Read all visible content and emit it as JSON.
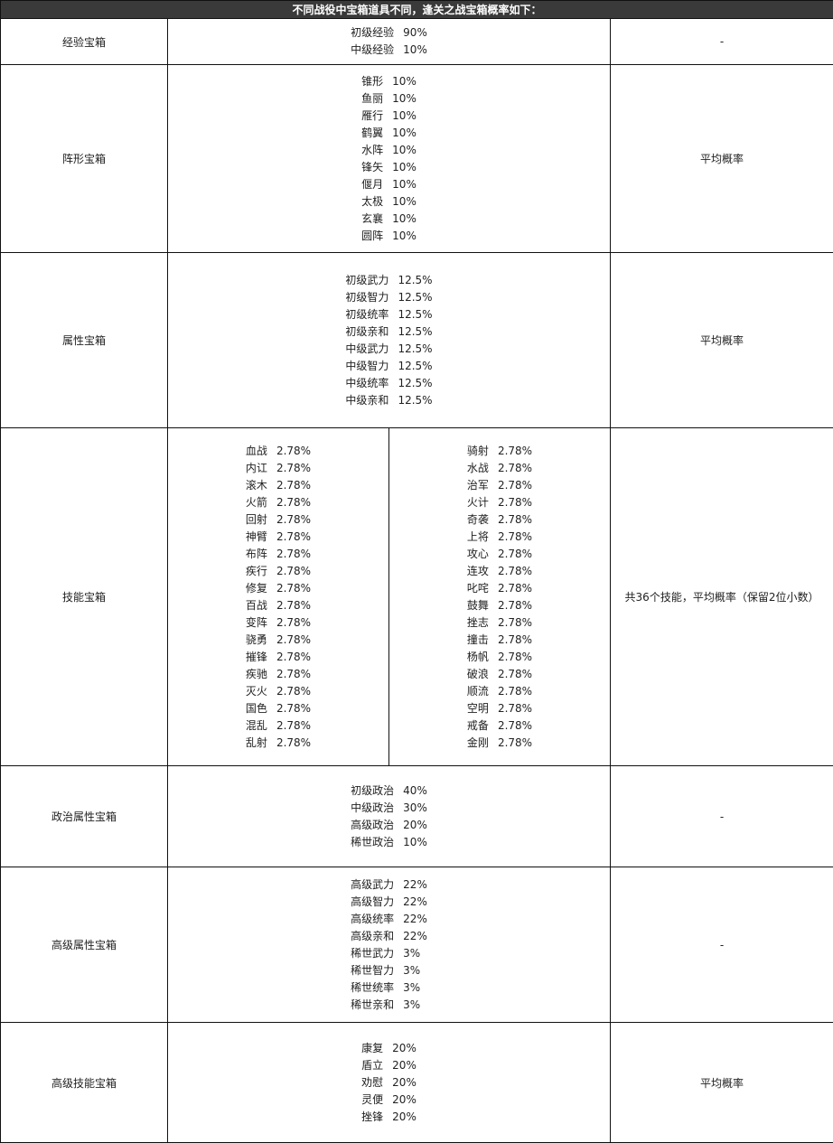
{
  "header": "不同战役中宝箱道具不同，逢关之战宝箱概率如下：",
  "rows": [
    {
      "name": "经验宝箱",
      "note": "-",
      "items": [
        [
          "初级经验",
          "90%"
        ],
        [
          "中级经验",
          "10%"
        ]
      ]
    },
    {
      "name": "阵形宝箱",
      "note": "平均概率",
      "items": [
        [
          "锥形",
          "10%"
        ],
        [
          "鱼丽",
          "10%"
        ],
        [
          "雁行",
          "10%"
        ],
        [
          "鹤翼",
          "10%"
        ],
        [
          "水阵",
          "10%"
        ],
        [
          "锋矢",
          "10%"
        ],
        [
          "偃月",
          "10%"
        ],
        [
          "太极",
          "10%"
        ],
        [
          "玄襄",
          "10%"
        ],
        [
          "圆阵",
          "10%"
        ]
      ]
    },
    {
      "name": "属性宝箱",
      "note": "平均概率",
      "items": [
        [
          "初级武力",
          "12.5%"
        ],
        [
          "初级智力",
          "12.5%"
        ],
        [
          "初级统率",
          "12.5%"
        ],
        [
          "初级亲和",
          "12.5%"
        ],
        [
          "中级武力",
          "12.5%"
        ],
        [
          "中级智力",
          "12.5%"
        ],
        [
          "中级统率",
          "12.5%"
        ],
        [
          "中级亲和",
          "12.5%"
        ]
      ]
    },
    {
      "name": "技能宝箱",
      "note": "共36个技能，平均概率（保留2位小数）",
      "items_left": [
        [
          "血战",
          "2.78%"
        ],
        [
          "内讧",
          "2.78%"
        ],
        [
          "滚木",
          "2.78%"
        ],
        [
          "火箭",
          "2.78%"
        ],
        [
          "回射",
          "2.78%"
        ],
        [
          "神臂",
          "2.78%"
        ],
        [
          "布阵",
          "2.78%"
        ],
        [
          "疾行",
          "2.78%"
        ],
        [
          "修复",
          "2.78%"
        ],
        [
          "百战",
          "2.78%"
        ],
        [
          "变阵",
          "2.78%"
        ],
        [
          "骁勇",
          "2.78%"
        ],
        [
          "摧锋",
          "2.78%"
        ],
        [
          "疾驰",
          "2.78%"
        ],
        [
          "灭火",
          "2.78%"
        ],
        [
          "国色",
          "2.78%"
        ],
        [
          "混乱",
          "2.78%"
        ],
        [
          "乱射",
          "2.78%"
        ]
      ],
      "items_right": [
        [
          "骑射",
          "2.78%"
        ],
        [
          "水战",
          "2.78%"
        ],
        [
          "治军",
          "2.78%"
        ],
        [
          "火计",
          "2.78%"
        ],
        [
          "奇袭",
          "2.78%"
        ],
        [
          "上将",
          "2.78%"
        ],
        [
          "攻心",
          "2.78%"
        ],
        [
          "连攻",
          "2.78%"
        ],
        [
          "叱咤",
          "2.78%"
        ],
        [
          "鼓舞",
          "2.78%"
        ],
        [
          "挫志",
          "2.78%"
        ],
        [
          "撞击",
          "2.78%"
        ],
        [
          "杨帆",
          "2.78%"
        ],
        [
          "破浪",
          "2.78%"
        ],
        [
          "顺流",
          "2.78%"
        ],
        [
          "空明",
          "2.78%"
        ],
        [
          "戒备",
          "2.78%"
        ],
        [
          "金刚",
          "2.78%"
        ]
      ]
    },
    {
      "name": "政治属性宝箱",
      "note": "-",
      "items": [
        [
          "初级政治",
          "40%"
        ],
        [
          "中级政治",
          "30%"
        ],
        [
          "高级政治",
          "20%"
        ],
        [
          "稀世政治",
          "10%"
        ]
      ]
    },
    {
      "name": "高级属性宝箱",
      "note": "-",
      "items": [
        [
          "高级武力",
          "22%"
        ],
        [
          "高级智力",
          "22%"
        ],
        [
          "高级统率",
          "22%"
        ],
        [
          "高级亲和",
          "22%"
        ],
        [
          "稀世武力",
          "3%"
        ],
        [
          "稀世智力",
          "3%"
        ],
        [
          "稀世统率",
          "3%"
        ],
        [
          "稀世亲和",
          "3%"
        ]
      ]
    },
    {
      "name": "高级技能宝箱",
      "note": "平均概率",
      "items": [
        [
          "康复",
          "20%"
        ],
        [
          "盾立",
          "20%"
        ],
        [
          "劝慰",
          "20%"
        ],
        [
          "灵便",
          "20%"
        ],
        [
          "挫锋",
          "20%"
        ]
      ]
    }
  ]
}
